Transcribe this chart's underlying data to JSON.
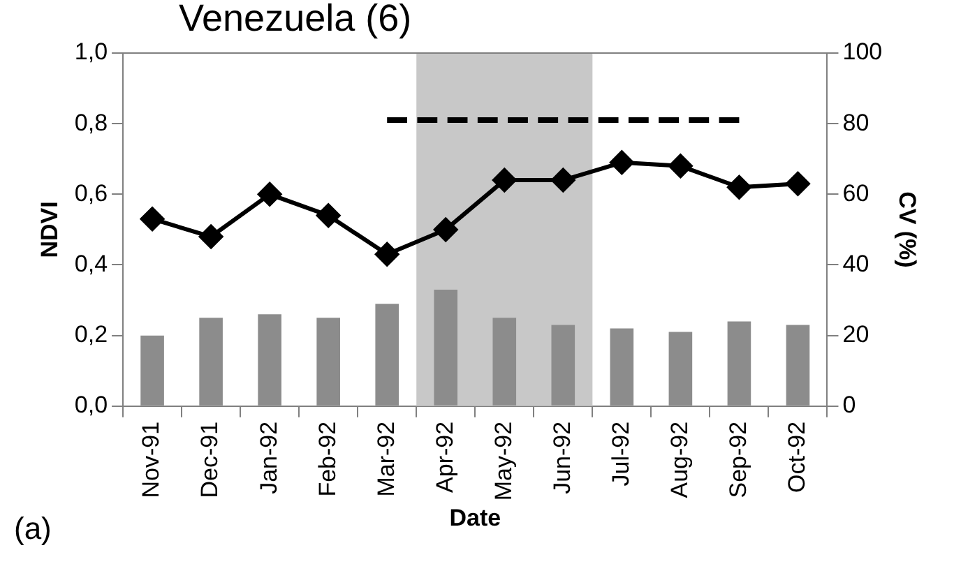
{
  "chart_data": {
    "type": "bar",
    "title": "Venezuela (6)",
    "xlabel": "Date",
    "ylabel": "NDVI",
    "y2label": "CV (%)",
    "categories": [
      "Nov-91",
      "Dec-91",
      "Jan-92",
      "Feb-92",
      "Mar-92",
      "Apr-92",
      "May-92",
      "Jun-92",
      "Jul-92",
      "Aug-92",
      "Sep-92",
      "Oct-92"
    ],
    "series": [
      {
        "axis": "y2",
        "color": "#8c8c8c",
        "values": [
          20,
          25,
          26,
          25,
          29,
          33,
          25,
          23,
          22,
          21,
          24,
          23
        ]
      },
      {
        "type": "line",
        "axis": "y",
        "color": "#000000",
        "marker": "diamond",
        "line_style": "solid",
        "values": [
          0.53,
          0.48,
          0.6,
          0.54,
          0.43,
          0.5,
          0.64,
          0.64,
          0.69,
          0.68,
          0.62,
          0.63
        ]
      },
      {
        "type": "line",
        "axis": "y",
        "color": "#000000",
        "marker": "none",
        "line_style": "dashed",
        "values": [
          null,
          null,
          null,
          null,
          0.81,
          0.81,
          0.81,
          0.81,
          0.81,
          0.81,
          0.81,
          null
        ]
      }
    ],
    "ylim": [
      0,
      1
    ],
    "yticks": [
      {
        "value": 0,
        "label": "0,0"
      },
      {
        "value": 0.2,
        "label": "0,2"
      },
      {
        "value": 0.4,
        "label": "0,4"
      },
      {
        "value": 0.6,
        "label": "0,6"
      },
      {
        "value": 0.8,
        "label": "0,8"
      },
      {
        "value": 1,
        "label": "1,0"
      }
    ],
    "y2lim": [
      0,
      100
    ],
    "y2ticks": [
      0,
      20,
      40,
      60,
      80,
      100
    ],
    "bands": [
      {
        "axis": "x",
        "from": "Apr-92",
        "to": "Jun-92",
        "color": "#c8c8c8"
      }
    ],
    "annotations": [
      "(a)"
    ],
    "grid": false,
    "legend": false
  }
}
